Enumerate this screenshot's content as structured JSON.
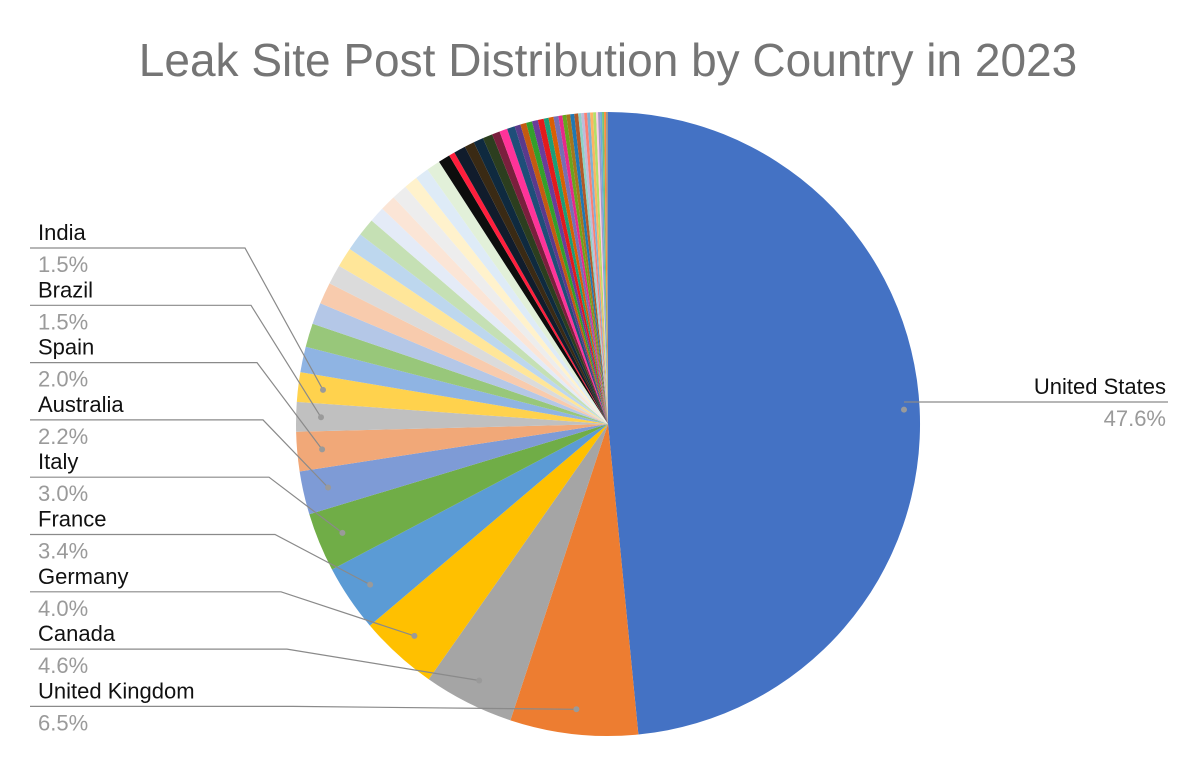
{
  "chart_data": {
    "type": "pie",
    "title": "Leak Site Post Distribution by Country in 2023",
    "slices": [
      {
        "label": "United States",
        "pct_label": "47.6%",
        "value": 47.6,
        "color": "#4472c4"
      },
      {
        "label": "United Kingdom",
        "pct_label": "6.5%",
        "value": 6.5,
        "color": "#ed7d31"
      },
      {
        "label": "Canada",
        "pct_label": "4.6%",
        "value": 4.6,
        "color": "#a5a5a5"
      },
      {
        "label": "Germany",
        "pct_label": "4.0%",
        "value": 4.0,
        "color": "#ffc000"
      },
      {
        "label": "France",
        "pct_label": "3.4%",
        "value": 3.4,
        "color": "#5b9bd5"
      },
      {
        "label": "Italy",
        "pct_label": "3.0%",
        "value": 3.0,
        "color": "#70ad47"
      },
      {
        "label": "Australia",
        "pct_label": "2.2%",
        "value": 2.2,
        "color": "#7e9bd6"
      },
      {
        "label": "Spain",
        "pct_label": "2.0%",
        "value": 2.0,
        "color": "#f1a878"
      },
      {
        "label": "Brazil",
        "pct_label": "1.5%",
        "value": 1.5,
        "color": "#c0c0c0"
      },
      {
        "label": "India",
        "pct_label": "1.5%",
        "value": 1.5,
        "color": "#ffd24d"
      }
    ],
    "other_slices": [
      {
        "value": 1.3,
        "color": "#8fb4e3"
      },
      {
        "value": 1.2,
        "color": "#98c77a"
      },
      {
        "value": 1.1,
        "color": "#b4c7e7"
      },
      {
        "value": 1.1,
        "color": "#f8cbad"
      },
      {
        "value": 1.0,
        "color": "#dbdbdb"
      },
      {
        "value": 1.0,
        "color": "#ffe699"
      },
      {
        "value": 0.9,
        "color": "#bdd7ee"
      },
      {
        "value": 0.9,
        "color": "#c5e0b4"
      },
      {
        "value": 0.8,
        "color": "#e4ebf7"
      },
      {
        "value": 0.8,
        "color": "#fbe5d6"
      },
      {
        "value": 0.8,
        "color": "#ededed"
      },
      {
        "value": 0.7,
        "color": "#fff2cc"
      },
      {
        "value": 0.7,
        "color": "#deebf7"
      },
      {
        "value": 0.7,
        "color": "#e2f0d9"
      },
      {
        "value": 0.6,
        "color": "#0d0d0d"
      },
      {
        "value": 0.3,
        "color": "#ff1e3c"
      },
      {
        "value": 0.6,
        "color": "#111c2c"
      },
      {
        "value": 0.5,
        "color": "#3a2a14"
      },
      {
        "value": 0.5,
        "color": "#0f2a3f"
      },
      {
        "value": 0.5,
        "color": "#2c3e1f"
      },
      {
        "value": 0.4,
        "color": "#7a1f3d"
      },
      {
        "value": 0.4,
        "color": "#ff3399"
      },
      {
        "value": 0.4,
        "color": "#1f4e79"
      },
      {
        "value": 0.3,
        "color": "#5b3a8c"
      },
      {
        "value": 0.3,
        "color": "#c55a11"
      },
      {
        "value": 0.3,
        "color": "#33a02c"
      },
      {
        "value": 0.3,
        "color": "#6a3d9a"
      },
      {
        "value": 0.3,
        "color": "#e31a1c"
      },
      {
        "value": 0.25,
        "color": "#1b9e77"
      },
      {
        "value": 0.25,
        "color": "#d95f02"
      },
      {
        "value": 0.25,
        "color": "#7570b3"
      },
      {
        "value": 0.2,
        "color": "#e7298a"
      },
      {
        "value": 0.2,
        "color": "#66a61e"
      },
      {
        "value": 0.2,
        "color": "#a6761d"
      },
      {
        "value": 0.2,
        "color": "#1f78b4"
      },
      {
        "value": 0.2,
        "color": "#b15928"
      },
      {
        "value": 0.15,
        "color": "#8dd3c7"
      },
      {
        "value": 0.15,
        "color": "#bebada"
      },
      {
        "value": 0.15,
        "color": "#fb8072"
      },
      {
        "value": 0.15,
        "color": "#80b1d3"
      },
      {
        "value": 0.15,
        "color": "#fdb462"
      },
      {
        "value": 0.15,
        "color": "#b3de69"
      },
      {
        "value": 0.1,
        "color": "#fccde5"
      },
      {
        "value": 0.1,
        "color": "#9e9ac8"
      },
      {
        "value": 0.1,
        "color": "#6baed6"
      },
      {
        "value": 0.1,
        "color": "#74c476"
      },
      {
        "value": 0.1,
        "color": "#fd8d3c"
      },
      {
        "value": 0.1,
        "color": "#969696"
      }
    ]
  }
}
